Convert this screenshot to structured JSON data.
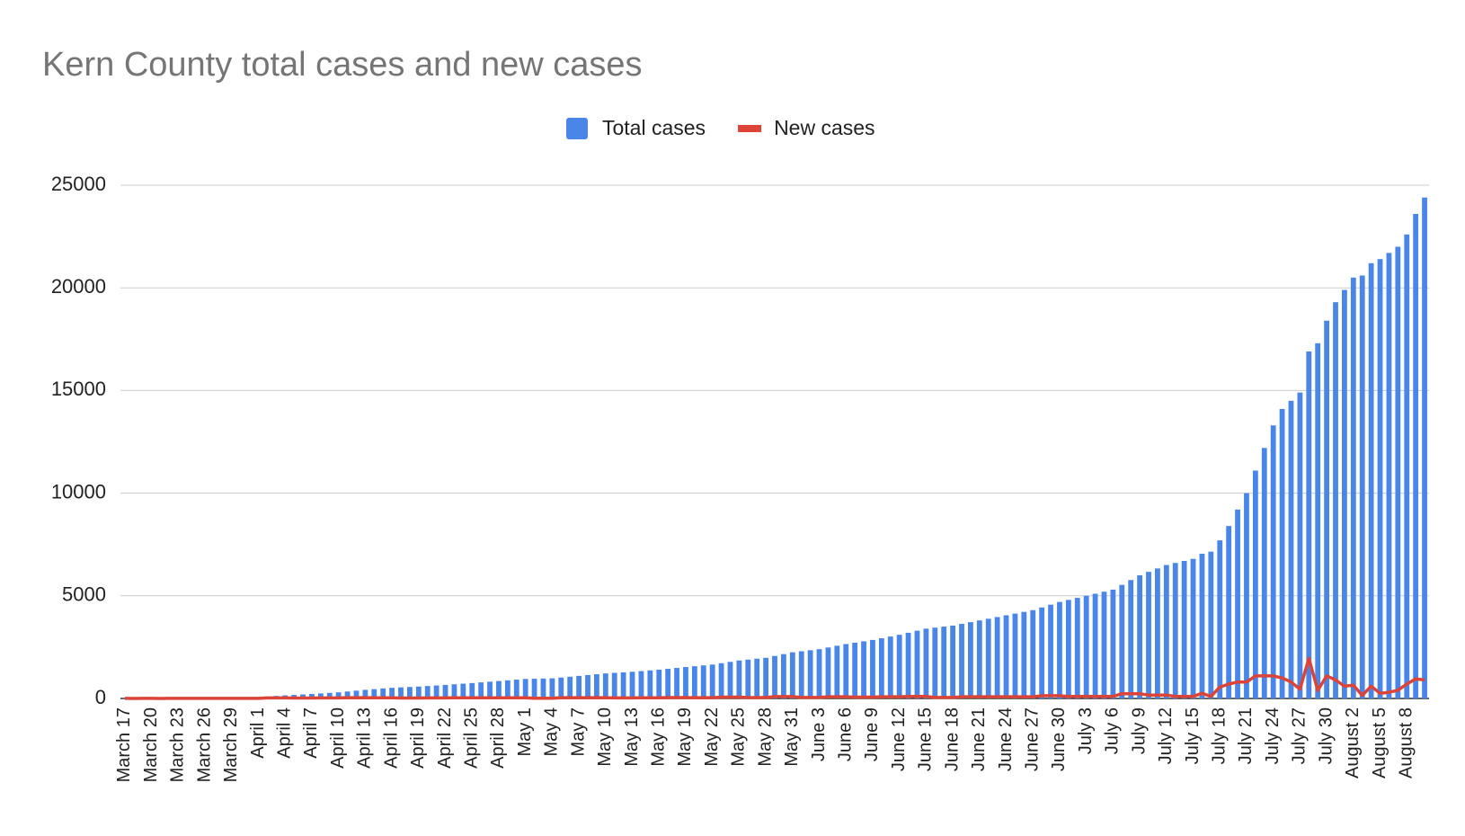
{
  "chart_data": {
    "type": "bar_line",
    "title": "Kern County total cases and new cases",
    "categories": [
      "March 17",
      null,
      null,
      "March 20",
      null,
      null,
      "March 23",
      null,
      null,
      "March 26",
      null,
      null,
      "March 29",
      null,
      null,
      "April 1",
      null,
      null,
      "April 4",
      null,
      null,
      "April 7",
      null,
      null,
      "April 10",
      null,
      null,
      "April 13",
      null,
      null,
      "April 16",
      null,
      null,
      "April 19",
      null,
      null,
      "April 22",
      null,
      null,
      "April 25",
      null,
      null,
      "April 28",
      null,
      null,
      "May 1",
      null,
      null,
      "May 4",
      null,
      null,
      "May 7",
      null,
      null,
      "May 10",
      null,
      null,
      "May 13",
      null,
      null,
      "May 16",
      null,
      null,
      "May 19",
      null,
      null,
      "May 22",
      null,
      null,
      "May 25",
      null,
      null,
      "May 28",
      null,
      null,
      "May 31",
      null,
      null,
      "June 3",
      null,
      null,
      "June 6",
      null,
      null,
      "June 9",
      null,
      null,
      "June 12",
      null,
      null,
      "June 15",
      null,
      null,
      "June 18",
      null,
      null,
      "June 21",
      null,
      null,
      "June 24",
      null,
      null,
      "June 27",
      null,
      null,
      "June 30",
      null,
      null,
      "July 3",
      null,
      null,
      "July 6",
      null,
      null,
      "July 9",
      null,
      null,
      "July 12",
      null,
      null,
      "July 15",
      null,
      null,
      "July 18",
      null,
      null,
      "July 21",
      null,
      null,
      "July 24",
      null,
      null,
      "July 27",
      null,
      null,
      "July 30",
      null,
      null,
      "August 2",
      null,
      null,
      "August 5",
      null,
      null,
      "August 8",
      null,
      null
    ],
    "series": [
      {
        "name": "Total cases",
        "color": "#4a86e8",
        "kind": "bar",
        "values": [
          10,
          12,
          15,
          18,
          20,
          23,
          26,
          30,
          34,
          38,
          43,
          48,
          53,
          58,
          64,
          70,
          97,
          123,
          150,
          173,
          197,
          220,
          247,
          273,
          300,
          340,
          380,
          420,
          453,
          487,
          520,
          540,
          560,
          580,
          607,
          633,
          660,
          690,
          720,
          750,
          783,
          817,
          850,
          883,
          917,
          950,
          960,
          970,
          980,
          1020,
          1060,
          1100,
          1140,
          1180,
          1220,
          1247,
          1273,
          1300,
          1333,
          1367,
          1400,
          1443,
          1487,
          1530,
          1570,
          1610,
          1650,
          1717,
          1783,
          1850,
          1893,
          1937,
          1980,
          2070,
          2160,
          2250,
          2300,
          2350,
          2400,
          2483,
          2567,
          2650,
          2717,
          2783,
          2850,
          2933,
          3017,
          3100,
          3200,
          3300,
          3400,
          3450,
          3500,
          3550,
          3633,
          3717,
          3800,
          3883,
          3967,
          4050,
          4133,
          4217,
          4300,
          4433,
          4567,
          4700,
          4800,
          4900,
          5000,
          5100,
          5200,
          5300,
          5533,
          5767,
          6000,
          6167,
          6333,
          6500,
          6600,
          6700,
          6800,
          7050,
          7150,
          7700,
          8400,
          9200,
          10000,
          11100,
          12200,
          13300,
          14100,
          14500,
          14900,
          16900,
          17300,
          18400,
          19300,
          19900,
          20500,
          20600,
          21200,
          21400,
          21700,
          22000,
          22600,
          23600,
          24400
        ]
      },
      {
        "name": "New cases",
        "color": "#db4437",
        "kind": "line",
        "values": [
          5,
          2,
          3,
          3,
          2,
          3,
          3,
          4,
          4,
          4,
          5,
          5,
          5,
          5,
          6,
          6,
          27,
          26,
          27,
          23,
          24,
          23,
          27,
          26,
          27,
          40,
          40,
          40,
          33,
          34,
          33,
          20,
          20,
          20,
          27,
          26,
          27,
          30,
          30,
          30,
          33,
          34,
          33,
          33,
          34,
          33,
          10,
          10,
          10,
          40,
          40,
          40,
          40,
          40,
          40,
          27,
          26,
          27,
          33,
          34,
          33,
          43,
          44,
          43,
          40,
          40,
          40,
          67,
          66,
          67,
          43,
          44,
          43,
          90,
          90,
          90,
          50,
          50,
          50,
          83,
          84,
          83,
          67,
          66,
          67,
          83,
          84,
          83,
          100,
          100,
          100,
          50,
          50,
          50,
          83,
          84,
          83,
          83,
          84,
          83,
          83,
          84,
          83,
          133,
          134,
          133,
          100,
          100,
          100,
          100,
          100,
          100,
          233,
          234,
          233,
          167,
          166,
          167,
          100,
          100,
          100,
          250,
          100,
          550,
          700,
          800,
          800,
          1100,
          1100,
          1100,
          1000,
          800,
          450,
          1950,
          400,
          1100,
          900,
          600,
          650,
          150,
          600,
          250,
          300,
          400,
          700,
          950,
          900
        ]
      }
    ],
    "ylim": [
      0,
      25000
    ],
    "yticks": [
      0,
      5000,
      10000,
      15000,
      20000,
      25000
    ],
    "grid": true,
    "legend": "top"
  }
}
